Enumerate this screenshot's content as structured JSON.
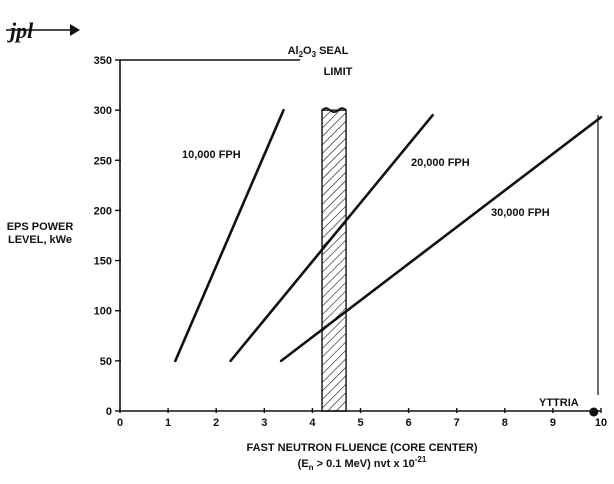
{
  "logo": {
    "text": "jpl"
  },
  "chart_data": {
    "type": "line",
    "xlabel_line1": "FAST NEUTRON FLUENCE (CORE CENTER)",
    "xlabel_line2": "(E",
    "xlabel_line2_sub": "n",
    "xlabel_line2_rest": " > 0.1 MeV) nvt x 10",
    "xlabel_line2_sup": "-21",
    "ylabel_line1": "EPS POWER",
    "ylabel_line2": "LEVEL, kWe",
    "xlim": [
      0,
      10
    ],
    "ylim": [
      0,
      350
    ],
    "xticks": [
      0,
      1,
      2,
      3,
      4,
      5,
      6,
      7,
      8,
      9,
      10
    ],
    "yticks": [
      0,
      50,
      100,
      150,
      200,
      250,
      300,
      350
    ],
    "grid": false,
    "series": [
      {
        "name": "10,000 FPH",
        "x": [
          1.15,
          3.4
        ],
        "y": [
          50,
          300
        ]
      },
      {
        "name": "20,000 FPH",
        "x": [
          2.3,
          6.5
        ],
        "y": [
          50,
          295
        ]
      },
      {
        "name": "30,000 FPH",
        "x": [
          3.35,
          10.0
        ],
        "y": [
          50,
          293
        ]
      }
    ],
    "seal_limit": {
      "label_pre": "Al",
      "label_sub1": "2",
      "label_mid": "O",
      "label_sub2": "3",
      "label_post": " SEAL",
      "label_line2": "LIMIT",
      "x_range": [
        4.2,
        4.7
      ],
      "y_top": 300
    },
    "point": {
      "label": "YTTRIA",
      "x": 9.85,
      "y": 0
    }
  }
}
